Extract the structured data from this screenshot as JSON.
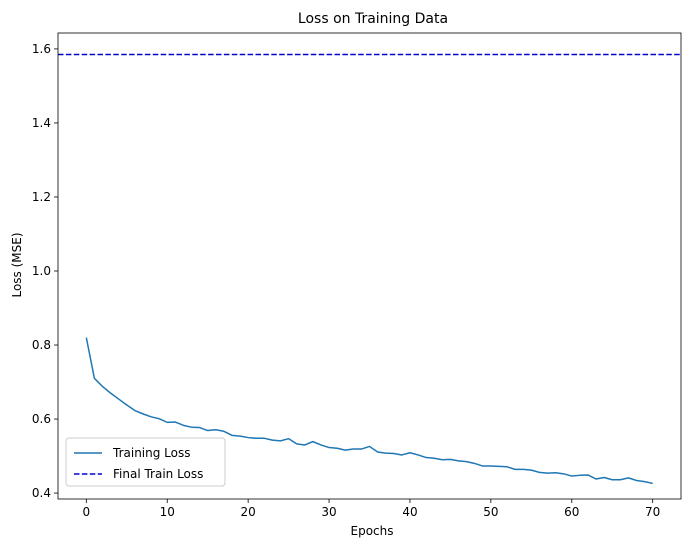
{
  "chart_data": {
    "type": "line",
    "title": "Loss on Training Data",
    "xlabel": "Epochs",
    "ylabel": "Loss (MSE)",
    "xlim": [
      -3.5,
      73.5
    ],
    "ylim": [
      0.384,
      1.643
    ],
    "xticks": [
      0,
      10,
      20,
      30,
      40,
      50,
      60,
      70
    ],
    "yticks": [
      0.4,
      0.6,
      0.8,
      1.0,
      1.2,
      1.4,
      1.6
    ],
    "grid": false,
    "legend_position": "lower-left",
    "series": [
      {
        "name": "Training Loss",
        "color": "#1f77b4",
        "style": "solid",
        "x": [
          0,
          1,
          2,
          3,
          4,
          5,
          6,
          7,
          8,
          9,
          10,
          11,
          12,
          13,
          14,
          15,
          16,
          17,
          18,
          19,
          20,
          21,
          22,
          23,
          24,
          25,
          26,
          27,
          28,
          29,
          30,
          31,
          32,
          33,
          34,
          35,
          36,
          37,
          38,
          39,
          40,
          41,
          42,
          43,
          44,
          45,
          46,
          47,
          48,
          49,
          50,
          51,
          52,
          53,
          54,
          55,
          56,
          57,
          58,
          59,
          60,
          61,
          62,
          63,
          64,
          65,
          66,
          67,
          68,
          69,
          70
        ],
        "values": [
          0.82,
          0.71,
          0.688,
          0.67,
          0.654,
          0.638,
          0.623,
          0.614,
          0.606,
          0.601,
          0.591,
          0.592,
          0.583,
          0.578,
          0.577,
          0.569,
          0.571,
          0.567,
          0.556,
          0.554,
          0.55,
          0.548,
          0.548,
          0.543,
          0.541,
          0.547,
          0.533,
          0.53,
          0.539,
          0.53,
          0.523,
          0.521,
          0.516,
          0.519,
          0.519,
          0.526,
          0.511,
          0.508,
          0.507,
          0.503,
          0.509,
          0.503,
          0.496,
          0.494,
          0.49,
          0.491,
          0.487,
          0.485,
          0.48,
          0.473,
          0.473,
          0.472,
          0.471,
          0.464,
          0.464,
          0.462,
          0.456,
          0.454,
          0.455,
          0.452,
          0.446,
          0.448,
          0.449,
          0.438,
          0.442,
          0.436,
          0.436,
          0.441,
          0.434,
          0.431,
          0.426
        ]
      },
      {
        "name": "Final Train Loss",
        "color": "#0000cd",
        "style": "dashed",
        "hline": 1.585
      }
    ]
  }
}
